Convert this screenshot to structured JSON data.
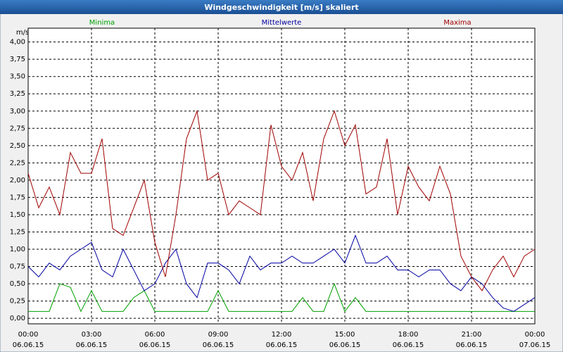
{
  "chart_data": {
    "type": "line",
    "title": "Windgeschwindigkeit [m/s] skaliert",
    "y_unit": "m/s",
    "x": [
      0,
      0.5,
      1,
      1.5,
      2,
      2.5,
      3,
      3.5,
      4,
      4.5,
      5,
      5.5,
      6,
      6.5,
      7,
      7.5,
      8,
      8.5,
      9,
      9.5,
      10,
      10.5,
      11,
      11.5,
      12,
      12.5,
      13,
      13.5,
      14,
      14.5,
      15,
      15.5,
      16,
      16.5,
      17,
      17.5,
      18,
      18.5,
      19,
      19.5,
      20,
      20.5,
      21,
      21.5,
      22,
      22.5,
      23,
      23.5,
      24
    ],
    "series": [
      {
        "name": "Minima",
        "color": "#00a000",
        "values": [
          0.1,
          0.1,
          0.1,
          0.5,
          0.45,
          0.1,
          0.4,
          0.1,
          0.1,
          0.1,
          0.3,
          0.4,
          0.1,
          0.1,
          0.1,
          0.1,
          0.1,
          0.1,
          0.4,
          0.1,
          0.1,
          0.1,
          0.1,
          0.1,
          0.1,
          0.1,
          0.3,
          0.1,
          0.1,
          0.5,
          0.1,
          0.3,
          0.1,
          0.1,
          0.1,
          0.1,
          0.1,
          0.1,
          0.1,
          0.1,
          0.1,
          0.1,
          0.1,
          0.1,
          0.1,
          0.1,
          0.1,
          0.1,
          0.1
        ]
      },
      {
        "name": "Mittelwerte",
        "color": "#0000a0",
        "values": [
          0.75,
          0.6,
          0.8,
          0.7,
          0.9,
          1.0,
          1.1,
          0.7,
          0.6,
          1.0,
          0.7,
          0.4,
          0.5,
          0.8,
          1.0,
          0.5,
          0.3,
          0.8,
          0.8,
          0.7,
          0.5,
          0.9,
          0.7,
          0.8,
          0.8,
          0.9,
          0.8,
          0.8,
          0.9,
          1.0,
          0.8,
          1.2,
          0.8,
          0.8,
          0.9,
          0.7,
          0.7,
          0.6,
          0.7,
          0.7,
          0.5,
          0.4,
          0.6,
          0.5,
          0.3,
          0.15,
          0.1,
          0.2,
          0.3
        ]
      },
      {
        "name": "Maxima",
        "color": "#a00000",
        "values": [
          2.1,
          1.6,
          1.9,
          1.5,
          2.4,
          2.1,
          2.1,
          2.6,
          1.3,
          1.2,
          1.6,
          2.0,
          1.1,
          0.6,
          1.5,
          2.6,
          3.0,
          2.0,
          2.1,
          1.5,
          1.7,
          1.6,
          1.5,
          2.8,
          2.2,
          2.0,
          2.4,
          1.7,
          2.6,
          3.0,
          2.5,
          2.8,
          1.8,
          1.9,
          2.6,
          1.5,
          2.2,
          1.9,
          1.7,
          2.2,
          1.8,
          0.9,
          0.6,
          0.4,
          0.7,
          0.9,
          0.6,
          0.9,
          1.0
        ]
      }
    ],
    "xlim": [
      0,
      24
    ],
    "ylim": [
      -0.08,
      4.2
    ],
    "xticks": [
      {
        "value": 0,
        "label": "00:00",
        "date": "06.06.15"
      },
      {
        "value": 3,
        "label": "03:00",
        "date": "06.06.15"
      },
      {
        "value": 6,
        "label": "06:00",
        "date": "06.06.15"
      },
      {
        "value": 9,
        "label": "09:00",
        "date": "06.06.15"
      },
      {
        "value": 12,
        "label": "12:00",
        "date": "06.06.15"
      },
      {
        "value": 15,
        "label": "15:00",
        "date": "06.06.15"
      },
      {
        "value": 18,
        "label": "18:00",
        "date": "06.06.15"
      },
      {
        "value": 21,
        "label": "21:00",
        "date": "06.06.15"
      },
      {
        "value": 24,
        "label": "00:00",
        "date": "07.06.15"
      }
    ],
    "yticks": [
      {
        "value": 0,
        "label": "0,00"
      },
      {
        "value": 0.25,
        "label": "0,25"
      },
      {
        "value": 0.5,
        "label": "0,50"
      },
      {
        "value": 0.75,
        "label": "0,75"
      },
      {
        "value": 1,
        "label": "1,00"
      },
      {
        "value": 1.25,
        "label": "1,25"
      },
      {
        "value": 1.5,
        "label": "1,50"
      },
      {
        "value": 1.75,
        "label": "1,75"
      },
      {
        "value": 2,
        "label": "2,00"
      },
      {
        "value": 2.25,
        "label": "2,25"
      },
      {
        "value": 2.5,
        "label": "2,50"
      },
      {
        "value": 2.75,
        "label": "2,75"
      },
      {
        "value": 3,
        "label": "3,00"
      },
      {
        "value": 3.25,
        "label": "3,25"
      },
      {
        "value": 3.5,
        "label": "3,50"
      },
      {
        "value": 3.75,
        "label": "3,75"
      },
      {
        "value": 4,
        "label": "4,00"
      }
    ],
    "grid": true
  }
}
